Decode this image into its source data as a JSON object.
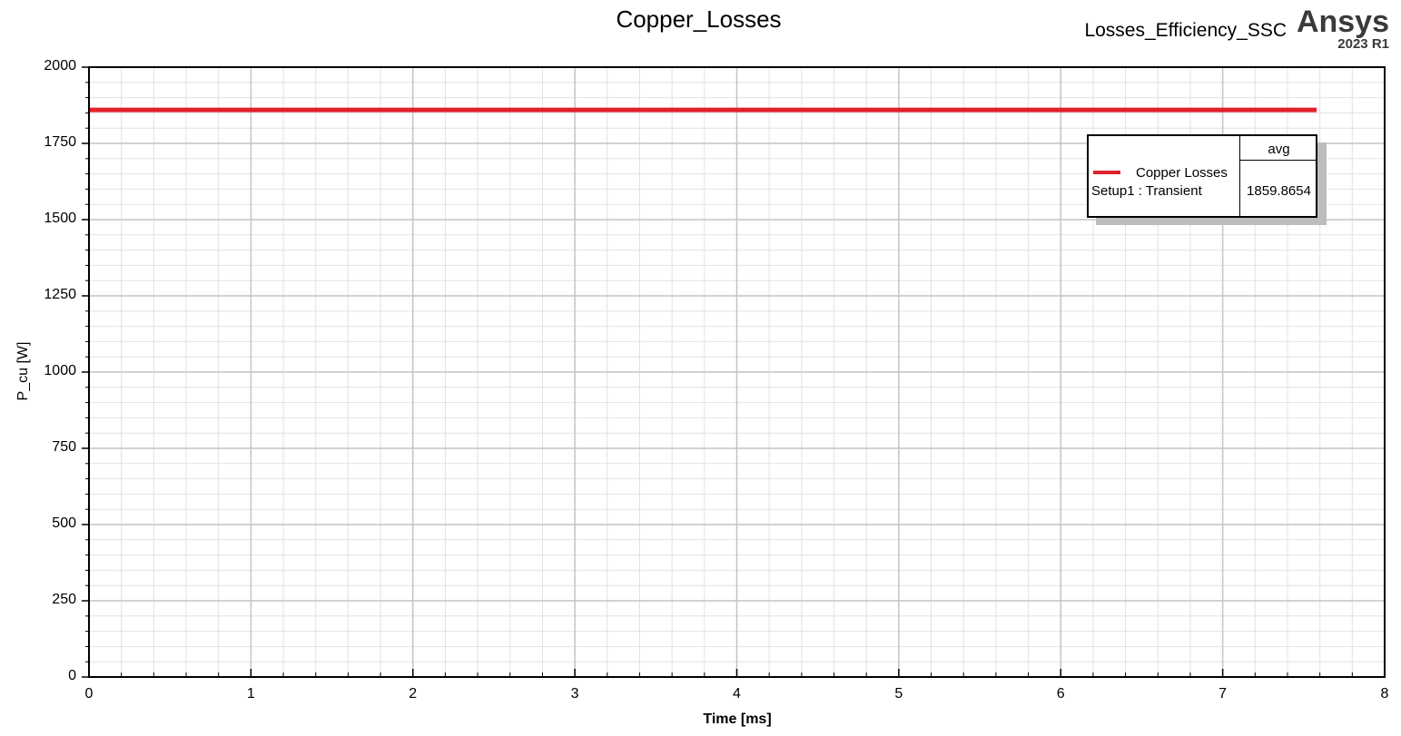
{
  "chart_data": {
    "type": "line",
    "title": "Copper_Losses",
    "project": "Losses_Efficiency_SSC",
    "brand": {
      "name": "Ansys",
      "version": "2023 R1"
    },
    "xlabel": "Time [ms]",
    "ylabel": "P_cu [W]",
    "xlim": [
      0,
      8
    ],
    "ylim": [
      0,
      2000
    ],
    "x_ticks": [
      0,
      1,
      2,
      3,
      4,
      5,
      6,
      7,
      8
    ],
    "y_ticks": [
      0,
      250,
      500,
      750,
      1000,
      1250,
      1500,
      1750,
      2000
    ],
    "grid": true,
    "legend_position": "top-right",
    "series": [
      {
        "name": "Copper Losses",
        "setup": "Setup1 : Transient",
        "color": "#e0202c",
        "x": [
          0,
          7.58
        ],
        "y": [
          1859.8654,
          1859.8654
        ]
      }
    ],
    "legend": {
      "column_header": "avg",
      "entries": [
        {
          "name": "Copper Losses",
          "setup": "Setup1 : Transient",
          "avg": "1859.8654"
        }
      ]
    }
  }
}
